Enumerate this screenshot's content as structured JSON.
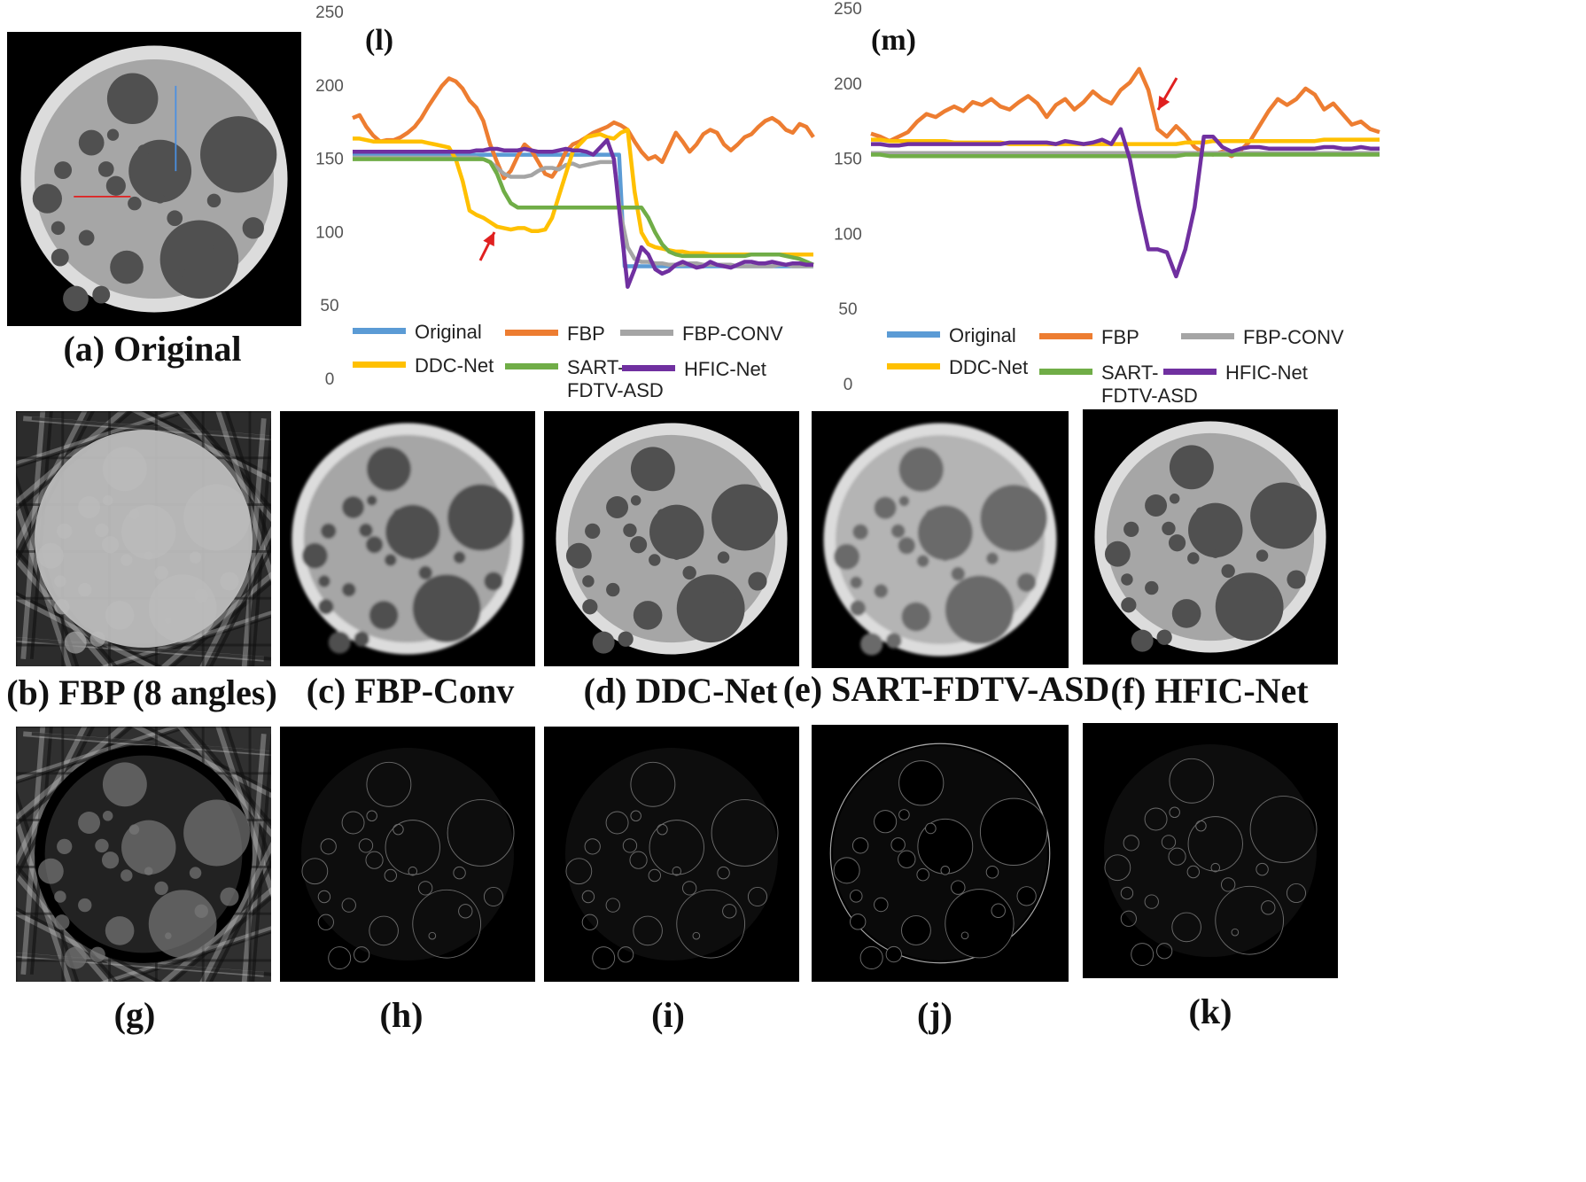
{
  "figure": {
    "panel_captions": {
      "a": "(a) Original",
      "b": "(b) FBP (8 angles)",
      "c": "(c) FBP-Conv",
      "d": "(d) DDC-Net",
      "e": "(e) SART-FDTV-ASD",
      "f": "(f) HFIC-Net",
      "g": "(g)",
      "h": "(h)",
      "i": "(i)",
      "j": "(j)",
      "k": "(k)"
    },
    "series_colors": {
      "Original": "#5b9bd5",
      "FBP": "#ed7d31",
      "FBP-CONV": "#a5a5a5",
      "DDC-Net": "#ffc000",
      "SART-FDTV-ASD": "#70ad47",
      "HFIC-Net": "#7030a0"
    }
  },
  "chart_data": [
    {
      "type": "line",
      "panel": "(l)",
      "title": "(l)",
      "ylim": [
        0,
        250
      ],
      "yticks": [
        "0",
        "50",
        "100",
        "150",
        "200",
        "250"
      ],
      "legend": [
        "Original",
        "FBP",
        "FBP-CONV",
        "DDC-Net",
        "SART-\nFDTV-ASD",
        "HFIC-Net"
      ],
      "series": [
        {
          "name": "Original",
          "values": [
            153,
            153,
            153,
            153,
            153,
            153,
            153,
            153,
            153,
            153,
            153,
            153,
            153,
            153,
            153,
            153,
            153,
            153,
            153,
            153,
            153,
            153,
            153,
            153,
            153,
            153,
            153,
            153,
            153,
            153,
            153,
            153,
            153,
            153,
            153,
            153,
            153,
            153,
            153,
            153,
            153,
            153,
            153,
            153,
            153,
            153,
            153,
            153,
            153,
            77,
            77,
            77,
            77,
            77,
            77,
            77,
            77,
            77,
            77,
            77,
            77,
            77,
            77,
            77,
            77,
            77,
            77,
            77,
            77,
            77,
            77,
            77,
            77,
            77,
            77,
            77,
            77,
            77,
            77,
            77,
            77,
            77,
            77,
            77
          ]
        },
        {
          "name": "FBP",
          "values": [
            178,
            180,
            172,
            166,
            162,
            163,
            163,
            165,
            168,
            172,
            178,
            186,
            193,
            200,
            205,
            203,
            198,
            190,
            185,
            176,
            160,
            148,
            137,
            142,
            152,
            160,
            156,
            148,
            140,
            138,
            145,
            155,
            160,
            162,
            165,
            168,
            170,
            172,
            175,
            173,
            170,
            162,
            155,
            150,
            152,
            148,
            158,
            168,
            162,
            155,
            160,
            167,
            170,
            168,
            160,
            156,
            160,
            165,
            167,
            172,
            176,
            178,
            175,
            170,
            168,
            174,
            172,
            165
          ]
        },
        {
          "name": "FBP-CONV",
          "values": [
            151,
            151,
            151,
            151,
            151,
            151,
            151,
            151,
            151,
            151,
            151,
            151,
            151,
            151,
            151,
            151,
            151,
            151,
            151,
            150,
            148,
            144,
            140,
            138,
            138,
            138,
            139,
            142,
            144,
            144,
            143,
            146,
            147,
            145,
            146,
            147,
            148,
            148,
            148,
            112,
            90,
            82,
            80,
            80,
            79,
            79,
            78,
            78,
            78,
            79,
            79,
            78,
            78,
            78,
            78,
            78,
            77,
            77,
            77,
            77,
            77,
            77,
            78,
            78,
            77,
            77,
            77,
            77
          ]
        },
        {
          "name": "DDC-Net",
          "values": [
            164,
            164,
            163,
            162,
            162,
            162,
            162,
            162,
            162,
            162,
            162,
            161,
            160,
            159,
            158,
            150,
            135,
            115,
            112,
            110,
            107,
            104,
            103,
            102,
            103,
            103,
            101,
            101,
            102,
            110,
            125,
            140,
            155,
            160,
            165,
            166,
            167,
            165,
            164,
            168,
            170,
            128,
            100,
            92,
            90,
            89,
            88,
            87,
            87,
            86,
            86,
            86,
            85,
            85,
            85,
            85,
            85,
            85,
            85,
            85,
            85,
            85,
            85,
            85,
            85,
            85,
            85,
            85
          ]
        },
        {
          "name": "SART-FDTV-ASD",
          "values": [
            150,
            150,
            150,
            150,
            150,
            150,
            150,
            150,
            150,
            150,
            150,
            150,
            150,
            150,
            150,
            150,
            150,
            150,
            150,
            150,
            148,
            140,
            128,
            120,
            117,
            117,
            117,
            117,
            117,
            117,
            117,
            117,
            117,
            117,
            117,
            117,
            117,
            117,
            117,
            117,
            117,
            117,
            117,
            110,
            100,
            92,
            87,
            85,
            84,
            84,
            84,
            84,
            84,
            84,
            84,
            84,
            84,
            84,
            85,
            85,
            85,
            85,
            85,
            84,
            83,
            82,
            80,
            78
          ]
        },
        {
          "name": "HFIC-Net",
          "values": [
            155,
            155,
            155,
            155,
            155,
            155,
            155,
            155,
            155,
            155,
            155,
            155,
            155,
            155,
            155,
            155,
            155,
            155,
            156,
            156,
            157,
            157,
            156,
            156,
            156,
            157,
            156,
            155,
            155,
            155,
            156,
            157,
            156,
            156,
            155,
            153,
            158,
            163,
            150,
            105,
            63,
            75,
            90,
            85,
            75,
            72,
            74,
            78,
            80,
            78,
            76,
            77,
            80,
            78,
            77,
            76,
            78,
            80,
            80,
            79,
            79,
            80,
            79,
            78,
            79,
            79,
            78,
            78
          ]
        }
      ],
      "annotation": "red arrow at DDC-Net dip"
    },
    {
      "type": "line",
      "panel": "(m)",
      "title": "(m)",
      "ylim": [
        0,
        250
      ],
      "yticks": [
        "0",
        "50",
        "100",
        "150",
        "200",
        "250"
      ],
      "legend": [
        "Original",
        "FBP",
        "FBP-CONV",
        "DDC-Net",
        "SART-\nFDTV-ASD",
        "HFIC-Net"
      ],
      "series": [
        {
          "name": "Original",
          "values": [
            154,
            154,
            154,
            154,
            154,
            154,
            154,
            154,
            154,
            154,
            154,
            154,
            154,
            154,
            154,
            154,
            154,
            154,
            154,
            154,
            154,
            154,
            154,
            154,
            154,
            154,
            154,
            154,
            154,
            154,
            154,
            154,
            154,
            154,
            154,
            154,
            154,
            154,
            154,
            154,
            154,
            154,
            154,
            154,
            154,
            154,
            154,
            154,
            154,
            154,
            154,
            154,
            154,
            154,
            154,
            154,
            154,
            154,
            154,
            154,
            154,
            154,
            154,
            154,
            154,
            154,
            154,
            154,
            154,
            154
          ]
        },
        {
          "name": "FBP",
          "values": [
            167,
            165,
            162,
            165,
            168,
            175,
            180,
            178,
            182,
            185,
            182,
            188,
            186,
            190,
            185,
            183,
            188,
            192,
            187,
            178,
            186,
            190,
            183,
            188,
            195,
            190,
            187,
            196,
            201,
            210,
            196,
            170,
            165,
            172,
            166,
            158,
            154,
            153,
            155,
            152,
            156,
            162,
            172,
            182,
            190,
            186,
            190,
            197,
            193,
            183,
            187,
            180,
            173,
            175,
            170,
            168
          ]
        },
        {
          "name": "FBP-CONV",
          "values": [
            154,
            154,
            154,
            154,
            154,
            154,
            154,
            154,
            154,
            154,
            154,
            154,
            154,
            154,
            154,
            154,
            154,
            154,
            154,
            154,
            154,
            154,
            154,
            154,
            154,
            154,
            154,
            154,
            154,
            154,
            154,
            154,
            154,
            154,
            154,
            154,
            154,
            154,
            154,
            154,
            154,
            154,
            154,
            154,
            154,
            154,
            154,
            154,
            154,
            154,
            154,
            154,
            154,
            154,
            154,
            154
          ]
        },
        {
          "name": "DDC-Net",
          "values": [
            163,
            163,
            162,
            162,
            162,
            162,
            162,
            162,
            162,
            161,
            161,
            161,
            161,
            161,
            161,
            160,
            160,
            160,
            160,
            160,
            160,
            160,
            160,
            160,
            160,
            160,
            160,
            160,
            160,
            160,
            160,
            160,
            160,
            160,
            161,
            161,
            161,
            162,
            162,
            162,
            162,
            162,
            162,
            162,
            162,
            162,
            162,
            162,
            162,
            163,
            163,
            163,
            163,
            163,
            163,
            163
          ]
        },
        {
          "name": "SART-FDTV-ASD",
          "values": [
            153,
            153,
            152,
            152,
            152,
            152,
            152,
            152,
            152,
            152,
            152,
            152,
            152,
            152,
            152,
            152,
            152,
            152,
            152,
            152,
            152,
            152,
            152,
            152,
            152,
            152,
            152,
            152,
            152,
            152,
            152,
            152,
            152,
            152,
            153,
            153,
            153,
            153,
            153,
            153,
            153,
            153,
            153,
            153,
            153,
            153,
            153,
            153,
            153,
            153,
            153,
            153,
            153,
            153,
            153,
            153
          ]
        },
        {
          "name": "HFIC-Net",
          "values": [
            160,
            160,
            159,
            159,
            160,
            160,
            160,
            160,
            160,
            160,
            160,
            160,
            160,
            160,
            160,
            161,
            161,
            161,
            161,
            161,
            160,
            162,
            161,
            160,
            161,
            163,
            160,
            170,
            150,
            118,
            90,
            90,
            88,
            72,
            90,
            118,
            165,
            165,
            158,
            155,
            157,
            158,
            158,
            157,
            157,
            157,
            157,
            157,
            157,
            158,
            158,
            157,
            157,
            158,
            157,
            157
          ]
        }
      ],
      "annotation": "red arrow near FBP peak"
    }
  ]
}
